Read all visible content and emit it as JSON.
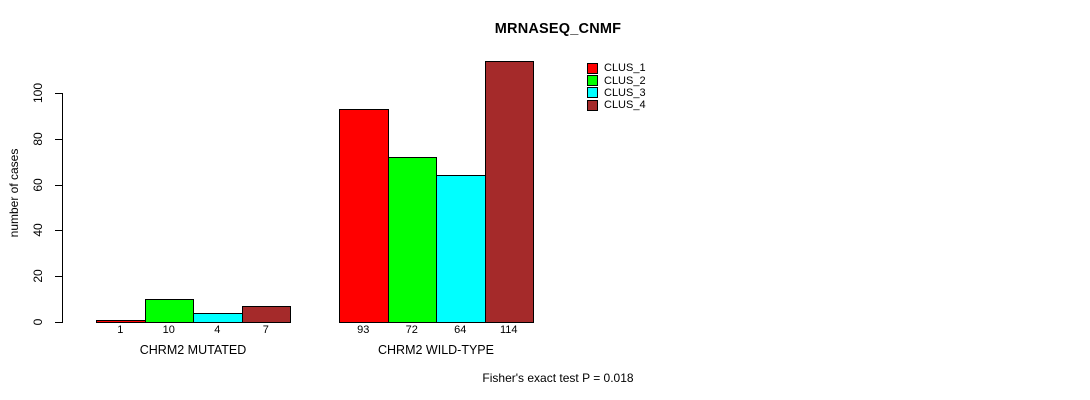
{
  "chart_data": {
    "type": "bar",
    "title": "MRNASEQ_CNMF",
    "ylabel": "number of cases",
    "xlabel": "",
    "ylim": [
      0,
      115
    ],
    "yticks": [
      0,
      20,
      40,
      60,
      80,
      100
    ],
    "grid": false,
    "legend_position": "top-right",
    "categories": [
      "CHRM2 MUTATED",
      "CHRM2 WILD-TYPE"
    ],
    "series": [
      {
        "name": "CLUS_1",
        "color": "#ff0000",
        "values": [
          1,
          93
        ]
      },
      {
        "name": "CLUS_2",
        "color": "#00ff00",
        "values": [
          10,
          72
        ]
      },
      {
        "name": "CLUS_3",
        "color": "#00ffff",
        "values": [
          4,
          64
        ]
      },
      {
        "name": "CLUS_4",
        "color": "#a52a2a",
        "values": [
          7,
          114
        ]
      }
    ],
    "bar_value_labels": [
      [
        1,
        10,
        4,
        7
      ],
      [
        93,
        72,
        64,
        114
      ]
    ],
    "annotation": "Fisher's exact test P = 0.018",
    "axis_color": "#000000",
    "text_color": "#000000",
    "background": "#ffffff"
  }
}
